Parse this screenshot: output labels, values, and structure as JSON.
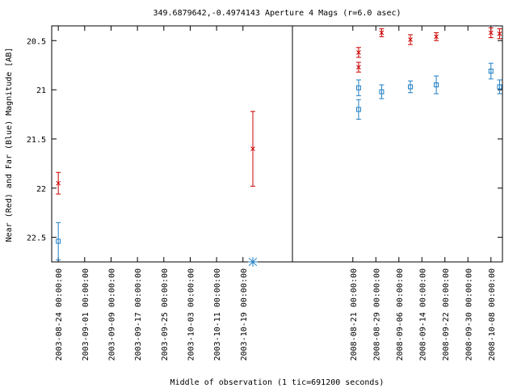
{
  "chart_data": {
    "type": "scatter",
    "title": "349.6879642,-0.4974143   Aperture 4 Mags (r=6.0 asec)",
    "xlabel": "Middle of observation (1 tic=691200 seconds)",
    "ylabel": "Near (Red) and Far (Blue) Magnitude [AB]",
    "ylim": [
      22.75,
      20.35
    ],
    "y_inverted": true,
    "y_ticks": [
      "20.5",
      "21",
      "21.5",
      "22",
      "22.5"
    ],
    "grid": false,
    "legend": "none",
    "colors": {
      "near": "#cc0000",
      "far": "#1f7ec4",
      "limit": "#1f7ec4",
      "axis": "#000000"
    },
    "panels": [
      {
        "name": "left",
        "x_start": "2003-08-22",
        "x_end": "2003-11-03",
        "x_ticks": [
          "2003-08-24 00:00:00",
          "2003-09-01 00:00:00",
          "2003-09-09 00:00:00",
          "2003-09-17 00:00:00",
          "2003-09-25 00:00:00",
          "2003-10-03 00:00:00",
          "2003-10-11 00:00:00",
          "2003-10-19 00:00:00"
        ]
      },
      {
        "name": "right",
        "x_start": "2008-07-31",
        "x_end": "2008-10-12",
        "x_ticks": [
          "2008-08-21 00:00:00",
          "2008-08-29 00:00:00",
          "2008-09-06 00:00:00",
          "2008-09-14 00:00:00",
          "2008-09-22 00:00:00",
          "2008-09-30 00:00:00",
          "2008-10-08 00:00:00"
        ]
      }
    ],
    "series": [
      {
        "key": "near",
        "marker": "x",
        "points": [
          {
            "panel": "left",
            "x": "2003-08-24",
            "y": 21.95,
            "err": 0.11
          },
          {
            "panel": "left",
            "x": "2003-10-22",
            "y": 21.6,
            "err": 0.38
          },
          {
            "panel": "right",
            "x": "2008-08-23",
            "y": 20.62,
            "err": 0.05
          },
          {
            "panel": "right",
            "x": "2008-08-23",
            "y": 20.77,
            "err": 0.05
          },
          {
            "panel": "right",
            "x": "2008-08-31",
            "y": 20.42,
            "err": 0.04
          },
          {
            "panel": "right",
            "x": "2008-09-10",
            "y": 20.49,
            "err": 0.05
          },
          {
            "panel": "right",
            "x": "2008-09-19",
            "y": 20.46,
            "err": 0.04
          },
          {
            "panel": "right",
            "x": "2008-10-08",
            "y": 20.42,
            "err": 0.05
          },
          {
            "panel": "right",
            "x": "2008-10-11",
            "y": 20.43,
            "err": 0.05
          }
        ]
      },
      {
        "key": "far",
        "marker": "square",
        "points": [
          {
            "panel": "left",
            "x": "2003-08-24",
            "y": 22.54,
            "err": 0.19
          },
          {
            "panel": "right",
            "x": "2008-08-23",
            "y": 20.98,
            "err": 0.08
          },
          {
            "panel": "right",
            "x": "2008-08-23",
            "y": 21.2,
            "err": 0.1
          },
          {
            "panel": "right",
            "x": "2008-08-31",
            "y": 21.02,
            "err": 0.07
          },
          {
            "panel": "right",
            "x": "2008-09-10",
            "y": 20.97,
            "err": 0.06
          },
          {
            "panel": "right",
            "x": "2008-09-19",
            "y": 20.95,
            "err": 0.09
          },
          {
            "panel": "right",
            "x": "2008-10-08",
            "y": 20.81,
            "err": 0.08
          },
          {
            "panel": "right",
            "x": "2008-10-11",
            "y": 20.97,
            "err": 0.07
          }
        ]
      },
      {
        "key": "limit",
        "marker": "asterisk",
        "points": [
          {
            "panel": "left",
            "x": "2003-10-22",
            "y": 22.75
          }
        ]
      }
    ]
  }
}
